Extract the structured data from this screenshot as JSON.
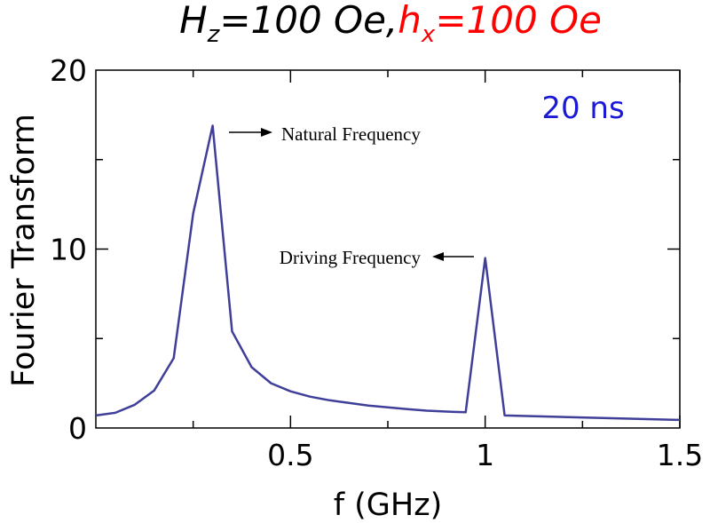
{
  "chart_data": {
    "type": "line",
    "title": {
      "part1_base": "H",
      "part1_sub": "z",
      "part1_rest": "=100 Oe,",
      "part2_base": "h",
      "part2_sub": "x",
      "part2_rest": "=100 Oe",
      "part1_color": "#000000",
      "part2_color": "#ff0000"
    },
    "xlabel": "f (GHz)",
    "ylabel": "Fourier Transform",
    "xlim": [
      0,
      1.5
    ],
    "ylim": [
      0,
      20
    ],
    "x_tick_labels": [
      "0.5",
      "1",
      "1.5"
    ],
    "y_tick_labels": [
      "0",
      "10",
      "20"
    ],
    "grid": false,
    "series_color": "#3f3f99",
    "duration_label": "20 ns",
    "duration_color": "#1a1ad6",
    "annotations": [
      {
        "text": "Natural Frequency",
        "arrow": "right"
      },
      {
        "text": "Driving Frequency",
        "arrow": "left"
      }
    ],
    "series": [
      {
        "x": [
          0.0,
          0.05,
          0.1,
          0.15,
          0.2,
          0.25,
          0.3,
          0.35,
          0.4,
          0.45,
          0.5,
          0.55,
          0.6,
          0.65,
          0.7,
          0.75,
          0.8,
          0.85,
          0.9,
          0.95,
          1.0,
          1.05,
          1.5
        ],
        "y": [
          0.7,
          0.85,
          1.3,
          2.1,
          3.9,
          12.0,
          16.9,
          5.4,
          3.4,
          2.5,
          2.05,
          1.75,
          1.55,
          1.4,
          1.25,
          1.15,
          1.05,
          0.97,
          0.92,
          0.88,
          9.5,
          0.7,
          0.45
        ]
      }
    ]
  }
}
